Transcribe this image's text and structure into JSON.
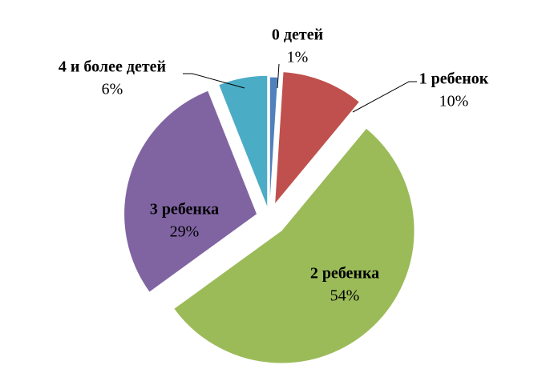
{
  "chart_data": {
    "type": "pie",
    "categories": [
      "0 детей",
      "1 ребенок",
      "2 ребенка",
      "3 ребенка",
      "4 и более детей"
    ],
    "values": [
      1,
      10,
      54,
      29,
      6
    ],
    "value_labels": [
      "1%",
      "10%",
      "54%",
      "29%",
      "6%"
    ],
    "colors": [
      "#4f81bd",
      "#c0504d",
      "#9bbb59",
      "#8064a2",
      "#4bacc6"
    ]
  }
}
